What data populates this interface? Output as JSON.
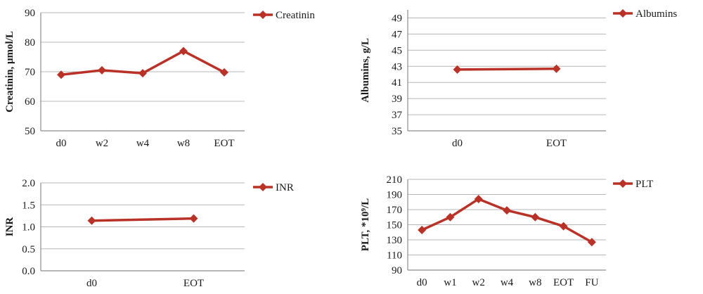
{
  "colors": {
    "series": "#b83227",
    "grid": "#b7b7b7",
    "axis": "#8c8c8c"
  },
  "chart_data": [
    {
      "type": "line",
      "categories": [
        "d0",
        "w2",
        "w4",
        "w8",
        "EOT"
      ],
      "series": [
        {
          "name": "Creatinin",
          "values": [
            69,
            70.5,
            69.5,
            77,
            69.8
          ]
        }
      ],
      "ylabel": "Creatinin, μmol/L",
      "ylim": [
        50,
        90
      ],
      "yticks": [
        "50",
        "60",
        "70",
        "80",
        "90"
      ],
      "grid": true,
      "legend": "right"
    },
    {
      "type": "line",
      "categories": [
        "d0",
        "EOT"
      ],
      "series": [
        {
          "name": "Albumins",
          "values": [
            42.6,
            42.7
          ]
        }
      ],
      "ylabel": "Albumins, g/L",
      "ylim": [
        35,
        50
      ],
      "yticks": [
        "35",
        "37",
        "39",
        "41",
        "43",
        "45",
        "47",
        "49"
      ],
      "grid": true,
      "legend": "right"
    },
    {
      "type": "line",
      "categories": [
        "d0",
        "EOT"
      ],
      "series": [
        {
          "name": "INR",
          "values": [
            1.14,
            1.19
          ]
        }
      ],
      "ylabel": "INR",
      "ylim": [
        0,
        2
      ],
      "yticks": [
        "0.0",
        "0.5",
        "1.0",
        "1.5",
        "2.0"
      ],
      "grid": true,
      "legend": "right"
    },
    {
      "type": "line",
      "categories": [
        "d0",
        "w1",
        "w2",
        "w4",
        "w8",
        "EOT",
        "FU"
      ],
      "series": [
        {
          "name": "PLT",
          "values": [
            143,
            160,
            184,
            169,
            160,
            148,
            127
          ]
        }
      ],
      "ylabel": "PLT, *10⁹/L",
      "ylim": [
        90,
        210
      ],
      "yticks": [
        "90",
        "110",
        "130",
        "150",
        "170",
        "190",
        "210"
      ],
      "grid": true,
      "legend": "right"
    }
  ]
}
